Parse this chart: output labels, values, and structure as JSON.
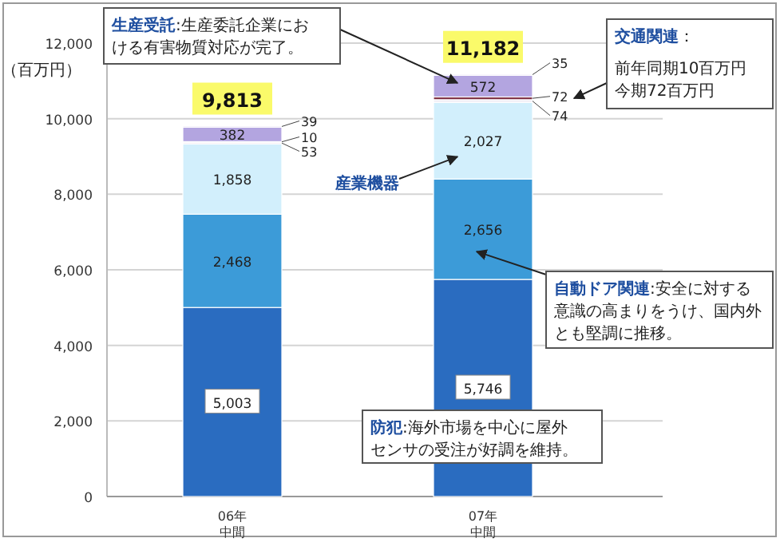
{
  "chart_data": {
    "type": "bar",
    "stacked": true,
    "ylabel": "（百万円）",
    "categories": [
      "06年中間",
      "07年中間"
    ],
    "series": [
      {
        "color": "#2a6cc0",
        "values": [
          5003,
          5746
        ],
        "value_labels": [
          "5,003",
          "5,746"
        ]
      },
      {
        "color": "#3c9bd8",
        "values": [
          2468,
          2656
        ],
        "value_labels": [
          "2,468",
          "2,656"
        ]
      },
      {
        "color": "#d2effc",
        "values": [
          1858,
          2027
        ],
        "value_labels": [
          "1,858",
          "2,027"
        ]
      },
      {
        "color": "#f2eef6",
        "values": [
          53,
          74
        ],
        "value_labels": [
          "53",
          "74"
        ]
      },
      {
        "color": "#7e2f42",
        "values": [
          10,
          72
        ],
        "value_labels": [
          "10",
          "72"
        ]
      },
      {
        "color": "#b3a5e0",
        "values": [
          382,
          572
        ],
        "value_labels": [
          "382",
          "572"
        ]
      },
      {
        "color": "#ece8f8",
        "values": [
          39,
          35
        ],
        "value_labels": [
          "39",
          "35"
        ]
      }
    ],
    "totals": [
      "9,813",
      "11,182"
    ],
    "ylim": [
      0,
      12000
    ],
    "yticks": [
      0,
      {
        "value": 2000,
        "label": "2,000"
      },
      {
        "value": 4000,
        "label": "4,000"
      },
      {
        "value": 6000,
        "label": "6,000"
      },
      {
        "value": 8000,
        "label": "8,000"
      },
      {
        "value": 10000,
        "label": "10,000"
      },
      {
        "value": 12000,
        "label": "12,000"
      }
    ],
    "grid": "y",
    "annotations": [
      "生産受託:生産委託企業における有害物質対応が完了。",
      "交通関連：",
      "前年同期10百万円",
      "今期72百万円",
      "産業機器",
      "自動ドア関連:安全に対する意識の高まりをうけ、国内外とも堅調に推移。",
      "防犯:海外市場を中心に屋外センサの受注が好調を維持。"
    ]
  }
}
